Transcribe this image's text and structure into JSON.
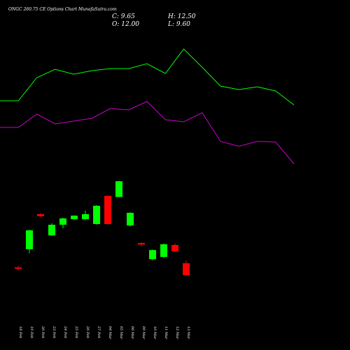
{
  "header": {
    "title": "ONGC 260.75 CE Options  Chart MunafaSutra.com",
    "close": "C: 9.65",
    "high": "H: 12.50",
    "open": "O: 12.00",
    "low": "L: 9.60"
  },
  "chart_data": [
    {
      "type": "line",
      "ylim": [
        0,
        100
      ],
      "series": [
        {
          "color": "#00ff00",
          "values": [
            53,
            53,
            69.5,
            75.5,
            72,
            74.5,
            76,
            76,
            79.5,
            72.5,
            90,
            77,
            63.5,
            61,
            63,
            60,
            50
          ]
        },
        {
          "color": "#cc00cc",
          "values": [
            34,
            34,
            43.5,
            36.5,
            38.5,
            40.5,
            47.5,
            46.5,
            52.5,
            39.5,
            38,
            44.5,
            24,
            20.5,
            24,
            23.5,
            8
          ]
        }
      ]
    },
    {
      "type": "candlestick",
      "categories": [
        "18 Feb",
        "19 Feb",
        "20 Feb",
        "23 Feb",
        "24 Feb",
        "25 Feb",
        "26 Feb",
        "27 Feb",
        "04 Mar",
        "05 Mar",
        "06 Mar",
        "09 Mar",
        "10 Mar",
        "11 Mar",
        "12 Mar",
        "13 Mar"
      ],
      "open": [
        11.17,
        14.77,
        21.7,
        17.5,
        19.6,
        20.7,
        20.7,
        19.75,
        25.3,
        25.1,
        19.45,
        16.0,
        12.8,
        13.25,
        15.6,
        12.0
      ],
      "high": [
        11.45,
        18.6,
        21.9,
        19.9,
        21.0,
        21.5,
        22.4,
        23.5,
        25.4,
        28.3,
        22.1,
        16.1,
        14.7,
        15.9,
        15.9,
        12.5
      ],
      "low": [
        10.6,
        14.0,
        21.1,
        17.4,
        18.9,
        20.6,
        20.6,
        19.6,
        19.6,
        25.0,
        19.3,
        15.3,
        12.6,
        13.1,
        14.2,
        9.6
      ],
      "close": [
        10.9,
        18.5,
        21.3,
        19.6,
        20.85,
        21.4,
        21.7,
        23.35,
        19.75,
        28.2,
        21.95,
        15.7,
        14.6,
        15.75,
        14.35,
        9.65
      ],
      "up_color": "#00ff00",
      "down_color": "#ff0000",
      "ylim": [
        0,
        40
      ]
    }
  ]
}
